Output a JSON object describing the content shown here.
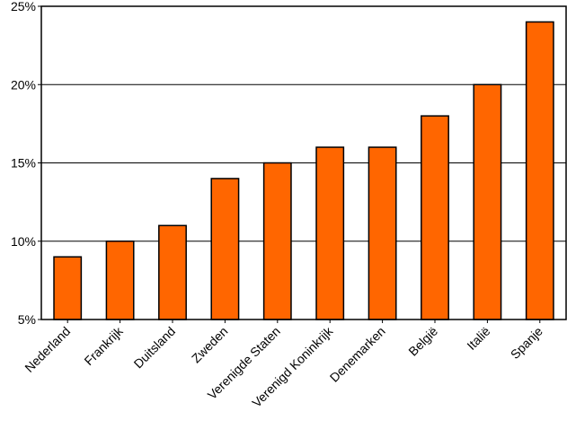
{
  "chart_data": {
    "type": "bar",
    "categories": [
      "Nederland",
      "Frankrijk",
      "Duitsland",
      "Zweden",
      "Verenigde Staten",
      "Verenigd Koninkrijk",
      "Denemarken",
      "België",
      "Italië",
      "Spanje"
    ],
    "values": [
      9,
      10,
      11,
      14,
      15,
      16,
      16,
      18,
      20,
      24
    ],
    "yticks": [
      "5%",
      "10%",
      "15%",
      "20%",
      "25%"
    ],
    "ylim": [
      5,
      25
    ],
    "grid": true,
    "legend": "none",
    "bar_color": "#ff6600",
    "edge_color": "#000000"
  }
}
